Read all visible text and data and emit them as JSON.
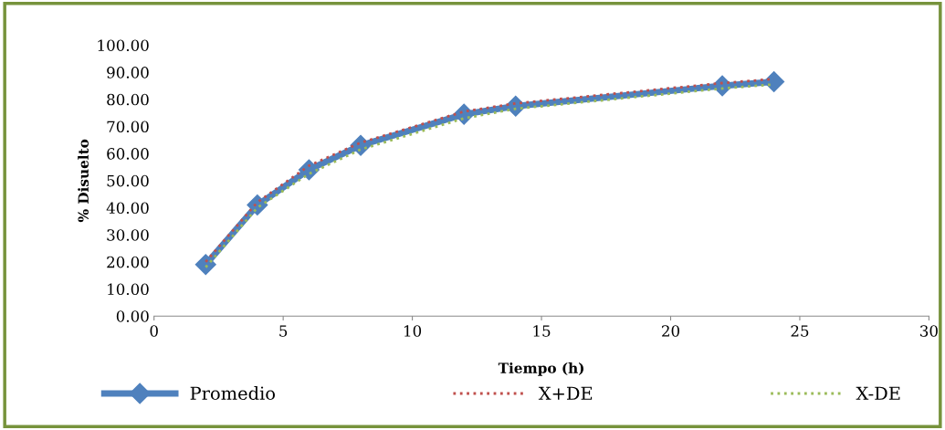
{
  "chart_data": {
    "type": "line",
    "xlabel": "Tiempo (h)",
    "ylabel": "% Disuelto",
    "x": [
      2,
      4,
      6,
      8,
      12,
      14,
      22,
      24
    ],
    "series": [
      {
        "name": "Promedio",
        "color": "#4f81bd",
        "values": [
          19.0,
          41.0,
          54.0,
          63.0,
          74.5,
          77.5,
          85.0,
          86.5
        ],
        "marker": "diamond",
        "line_style": "solid"
      },
      {
        "name": "X+DE",
        "color": "#c0504d",
        "values": [
          20.0,
          42.0,
          55.5,
          64.0,
          75.5,
          78.5,
          86.0,
          87.5
        ],
        "marker": "none",
        "line_style": "dotted"
      },
      {
        "name": "X-DE",
        "color": "#9bbb59",
        "values": [
          18.0,
          40.0,
          52.5,
          61.5,
          73.0,
          76.5,
          84.0,
          85.5
        ],
        "marker": "none",
        "line_style": "dotted"
      }
    ],
    "xlim": [
      0,
      30
    ],
    "xticks": [
      0,
      5,
      10,
      15,
      20,
      25,
      30
    ],
    "ylim": [
      0,
      100
    ],
    "yticks": [
      {
        "value": 0,
        "label": "0.00"
      },
      {
        "value": 10,
        "label": "10.00"
      },
      {
        "value": 20,
        "label": "20.00"
      },
      {
        "value": 30,
        "label": "30.00"
      },
      {
        "value": 40,
        "label": "40.00"
      },
      {
        "value": 50,
        "label": "50.00"
      },
      {
        "value": 60,
        "label": "60.00"
      },
      {
        "value": 70,
        "label": "70.00"
      },
      {
        "value": 80,
        "label": "80.00"
      },
      {
        "value": 90,
        "label": "90.00"
      },
      {
        "value": 100,
        "label": "100.00"
      }
    ],
    "grid": false,
    "legend": "bottom"
  }
}
